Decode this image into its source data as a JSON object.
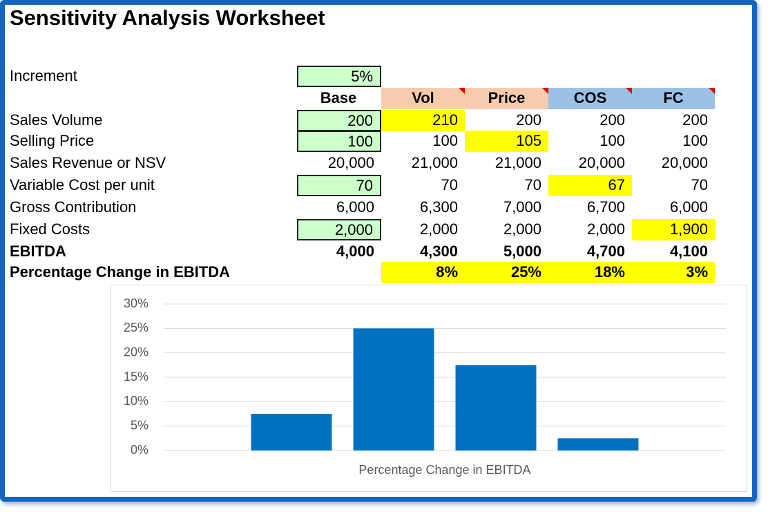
{
  "title": "Sensitivity Analysis Worksheet",
  "increment": {
    "label": "Increment",
    "value": "5%"
  },
  "table": {
    "columns": [
      "Base",
      "Vol",
      "Price",
      "COS",
      "FC"
    ],
    "rows": [
      {
        "label": "Sales Volume",
        "cells": [
          "200",
          "210",
          "200",
          "200",
          "200"
        ]
      },
      {
        "label": "Selling Price",
        "cells": [
          "100",
          "100",
          "105",
          "100",
          "100"
        ]
      },
      {
        "label": "Sales Revenue or NSV",
        "cells": [
          "20,000",
          "21,000",
          "21,000",
          "20,000",
          "20,000"
        ]
      },
      {
        "label": "Variable Cost per unit",
        "cells": [
          "70",
          "70",
          "70",
          "67",
          "70"
        ]
      },
      {
        "label": "Gross Contribution",
        "cells": [
          "6,000",
          "6,300",
          "7,000",
          "6,700",
          "6,000"
        ]
      },
      {
        "label": "Fixed Costs",
        "cells": [
          "2,000",
          "2,000",
          "2,000",
          "2,000",
          "1,900"
        ]
      },
      {
        "label": "EBITDA",
        "cells": [
          "4,000",
          "4,300",
          "5,000",
          "4,700",
          "4,100"
        ]
      },
      {
        "label": "Percentage Change in EBITDA",
        "cells": [
          null,
          "8%",
          "25%",
          "18%",
          "3%"
        ]
      }
    ]
  },
  "chart_data": {
    "type": "bar",
    "x_label": "Percentage Change in EBITDA",
    "categories": [
      null,
      null,
      null,
      null
    ],
    "values": [
      7.5,
      25,
      17.5,
      2.5
    ],
    "color": "#0070c0",
    "ylim": [
      0,
      30
    ],
    "yticks": [
      {
        "value": 0,
        "label": "0%"
      },
      {
        "value": 5,
        "label": "5%"
      },
      {
        "value": 10,
        "label": "10%"
      },
      {
        "value": 15,
        "label": "15%"
      },
      {
        "value": 20,
        "label": "20%"
      },
      {
        "value": 25,
        "label": "25%"
      },
      {
        "value": 30,
        "label": "30%"
      }
    ],
    "grid": true
  }
}
